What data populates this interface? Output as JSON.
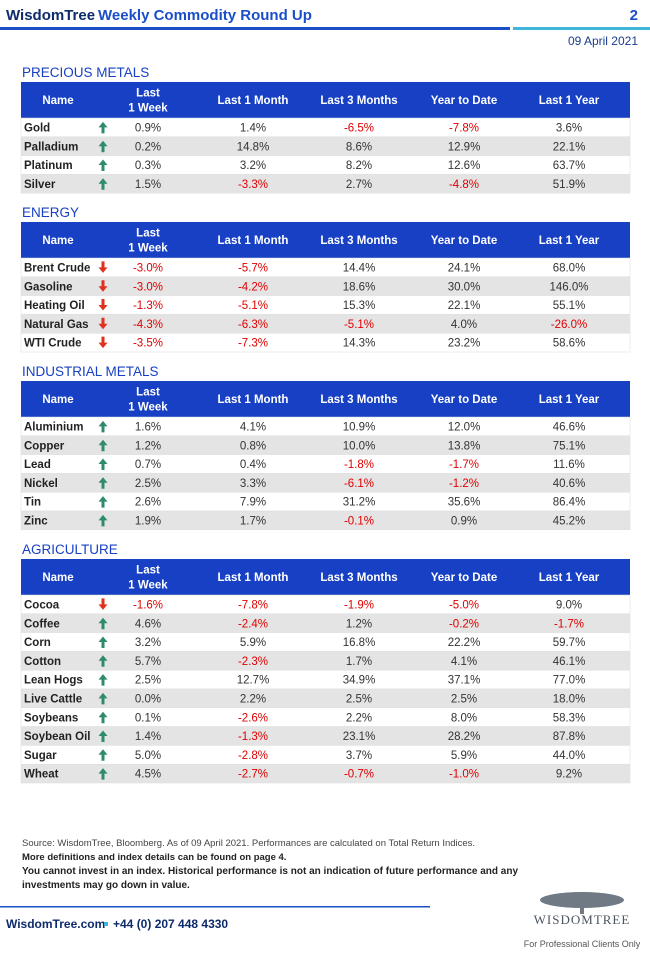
{
  "header": {
    "brand": "WisdomTree",
    "title": "Weekly Commodity Round Up",
    "page": "2",
    "date": "09 April 2021"
  },
  "columns": [
    [
      "Name"
    ],
    [
      "Last",
      "1 Week"
    ],
    [
      "Last 1 Month"
    ],
    [
      "Last 3 Months"
    ],
    [
      "Year to Date"
    ],
    [
      "Last 1 Year"
    ]
  ],
  "sections": [
    {
      "title": "PRECIOUS METALS",
      "rows": [
        [
          "Gold",
          "0.9%",
          "1.4%",
          "-6.5%",
          "-7.8%",
          "3.6%"
        ],
        [
          "Palladium",
          "0.2%",
          "14.8%",
          "8.6%",
          "12.9%",
          "22.1%"
        ],
        [
          "Platinum",
          "0.3%",
          "3.2%",
          "8.2%",
          "12.6%",
          "63.7%"
        ],
        [
          "Silver",
          "1.5%",
          "-3.3%",
          "2.7%",
          "-4.8%",
          "51.9%"
        ]
      ]
    },
    {
      "title": "ENERGY",
      "rows": [
        [
          "Brent Crude",
          "-3.0%",
          "-5.7%",
          "14.4%",
          "24.1%",
          "68.0%"
        ],
        [
          "Gasoline",
          "-3.0%",
          "-4.2%",
          "18.6%",
          "30.0%",
          "146.0%"
        ],
        [
          "Heating Oil",
          "-1.3%",
          "-5.1%",
          "15.3%",
          "22.1%",
          "55.1%"
        ],
        [
          "Natural Gas",
          "-4.3%",
          "-6.3%",
          "-5.1%",
          "4.0%",
          "-26.0%"
        ],
        [
          "WTI Crude",
          "-3.5%",
          "-7.3%",
          "14.3%",
          "23.2%",
          "58.6%"
        ]
      ]
    },
    {
      "title": "INDUSTRIAL METALS",
      "rows": [
        [
          "Aluminium",
          "1.6%",
          "4.1%",
          "10.9%",
          "12.0%",
          "46.6%"
        ],
        [
          "Copper",
          "1.2%",
          "0.8%",
          "10.0%",
          "13.8%",
          "75.1%"
        ],
        [
          "Lead",
          "0.7%",
          "0.4%",
          "-1.8%",
          "-1.7%",
          "11.6%"
        ],
        [
          "Nickel",
          "2.5%",
          "3.3%",
          "-6.1%",
          "-1.2%",
          "40.6%"
        ],
        [
          "Tin",
          "2.6%",
          "7.9%",
          "31.2%",
          "35.6%",
          "86.4%"
        ],
        [
          "Zinc",
          "1.9%",
          "1.7%",
          "-0.1%",
          "0.9%",
          "45.2%"
        ]
      ]
    },
    {
      "title": "AGRICULTURE",
      "rows": [
        [
          "Cocoa",
          "-1.6%",
          "-7.8%",
          "-1.9%",
          "-5.0%",
          "9.0%"
        ],
        [
          "Coffee",
          "4.6%",
          "-2.4%",
          "1.2%",
          "-0.2%",
          "-1.7%"
        ],
        [
          "Corn",
          "3.2%",
          "5.9%",
          "16.8%",
          "22.2%",
          "59.7%"
        ],
        [
          "Cotton",
          "5.7%",
          "-2.3%",
          "1.7%",
          "4.1%",
          "46.1%"
        ],
        [
          "Lean Hogs",
          "2.5%",
          "12.7%",
          "34.9%",
          "37.1%",
          "77.0%"
        ],
        [
          "Live Cattle",
          "0.0%",
          "2.2%",
          "2.5%",
          "2.5%",
          "18.0%"
        ],
        [
          "Soybeans",
          "0.1%",
          "-2.6%",
          "2.2%",
          "8.0%",
          "58.3%"
        ],
        [
          "Soybean Oil",
          "1.4%",
          "-1.3%",
          "23.1%",
          "28.2%",
          "87.8%"
        ],
        [
          "Sugar",
          "5.0%",
          "-2.8%",
          "3.7%",
          "5.9%",
          "44.0%"
        ],
        [
          "Wheat",
          "4.5%",
          "-2.7%",
          "-0.7%",
          "-1.0%",
          "9.2%"
        ]
      ]
    }
  ],
  "footnotes": {
    "source": "Source: WisdomTree, Bloomberg. As of 09 April 2021. Performances are calculated on Total Return Indices.",
    "definitions": "More definitions and index details can be found on page 4.",
    "warning_1": "You cannot invest in an index. Historical performance is not an indication of future performance and any",
    "warning_2": "investments may go down in value."
  },
  "footer": {
    "website": "WisdomTree.com",
    "phone": "+44 (0) 207 448 4330",
    "logo": "WISDOMTREE",
    "tagline": "For Professional Clients Only"
  }
}
